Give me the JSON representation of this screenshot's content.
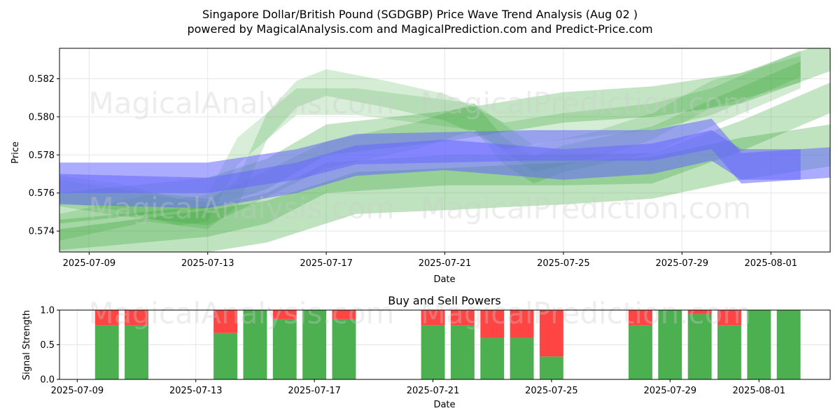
{
  "title_line1": "Singapore Dollar/British Pound (SGDGBP) Price Wave Trend Analysis (Aug 02 )",
  "title_line2": "powered by MagicalAnalysis.com and MagicalPrediction.com and Predict-Price.com",
  "watermarks": [
    "MagicalAnalysis.com",
    "MagicalPrediction.com"
  ],
  "colors": {
    "green": "#2ca02c",
    "blue": "#6666ff",
    "buy": "#4caf50",
    "sell": "#ff4444"
  },
  "chart_data": [
    {
      "type": "area",
      "title": "",
      "xlabel": "Date",
      "ylabel": "Price",
      "xlim": [
        "2025-07-08",
        "2025-08-03"
      ],
      "ylim": [
        0.5729,
        0.5836
      ],
      "x_ticks": [
        "2025-07-09",
        "2025-07-13",
        "2025-07-17",
        "2025-07-21",
        "2025-07-25",
        "2025-07-29",
        "2025-08-01"
      ],
      "y_ticks": [
        0.574,
        0.576,
        0.578,
        0.58,
        0.582
      ],
      "grid": true,
      "legend": "none",
      "bands": [
        {
          "color": "green",
          "opacity": 0.28,
          "width": 0.0016,
          "points": [
            [
              "2025-07-08",
              0.5738
            ],
            [
              "2025-07-13",
              0.5745
            ],
            [
              "2025-07-15",
              0.5752
            ],
            [
              "2025-07-17",
              0.5768
            ],
            [
              "2025-07-21",
              0.5772
            ],
            [
              "2025-07-25",
              0.5772
            ],
            [
              "2025-07-28",
              0.5773
            ],
            [
              "2025-07-31",
              0.579
            ],
            [
              "2025-08-03",
              0.581
            ]
          ]
        },
        {
          "color": "green",
          "opacity": 0.28,
          "width": 0.0016,
          "points": [
            [
              "2025-07-08",
              0.5752
            ],
            [
              "2025-07-13",
              0.576
            ],
            [
              "2025-07-15",
              0.577
            ],
            [
              "2025-07-17",
              0.5788
            ],
            [
              "2025-07-21",
              0.5795
            ],
            [
              "2025-07-25",
              0.5805
            ],
            [
              "2025-07-28",
              0.5808
            ],
            [
              "2025-07-31",
              0.5815
            ],
            [
              "2025-08-03",
              0.5832
            ]
          ]
        },
        {
          "color": "green",
          "opacity": 0.2,
          "width": 0.0014,
          "points": [
            [
              "2025-07-08",
              0.5742
            ],
            [
              "2025-07-11",
              0.5752
            ],
            [
              "2025-07-13",
              0.5748
            ],
            [
              "2025-07-14",
              0.576
            ],
            [
              "2025-07-15",
              0.5795
            ],
            [
              "2025-07-16",
              0.5812
            ],
            [
              "2025-07-17",
              0.5818
            ],
            [
              "2025-07-19",
              0.5812
            ],
            [
              "2025-07-21",
              0.5805
            ],
            [
              "2025-07-22",
              0.5798
            ],
            [
              "2025-07-23",
              0.579
            ],
            [
              "2025-07-25",
              0.5795
            ],
            [
              "2025-07-28",
              0.58
            ],
            [
              "2025-07-30",
              0.5808
            ],
            [
              "2025-08-02",
              0.5828
            ]
          ]
        },
        {
          "color": "green",
          "opacity": 0.18,
          "width": 0.0014,
          "points": [
            [
              "2025-07-08",
              0.5762
            ],
            [
              "2025-07-10",
              0.5758
            ],
            [
              "2025-07-12",
              0.575
            ],
            [
              "2025-07-13",
              0.5752
            ],
            [
              "2025-07-14",
              0.5782
            ],
            [
              "2025-07-16",
              0.5808
            ],
            [
              "2025-07-18",
              0.5808
            ],
            [
              "2025-07-21",
              0.5802
            ],
            [
              "2025-07-22",
              0.58
            ],
            [
              "2025-07-24",
              0.5778
            ],
            [
              "2025-07-26",
              0.5785
            ],
            [
              "2025-07-28",
              0.5795
            ],
            [
              "2025-07-30",
              0.5812
            ],
            [
              "2025-08-02",
              0.5825
            ]
          ]
        },
        {
          "color": "green",
          "opacity": 0.22,
          "width": 0.0014,
          "points": [
            [
              "2025-07-08",
              0.576
            ],
            [
              "2025-07-10",
              0.5755
            ],
            [
              "2025-07-13",
              0.575
            ],
            [
              "2025-07-15",
              0.5765
            ],
            [
              "2025-07-17",
              0.578
            ],
            [
              "2025-07-20",
              0.579
            ],
            [
              "2025-07-22",
              0.58
            ],
            [
              "2025-07-23",
              0.5782
            ],
            [
              "2025-07-24",
              0.5772
            ],
            [
              "2025-07-25",
              0.5778
            ],
            [
              "2025-07-28",
              0.5788
            ],
            [
              "2025-07-30",
              0.5802
            ],
            [
              "2025-08-02",
              0.5822
            ]
          ]
        },
        {
          "color": "green",
          "opacity": 0.3,
          "width": 0.0022,
          "points": [
            [
              "2025-07-08",
              0.573
            ],
            [
              "2025-07-13",
              0.574
            ],
            [
              "2025-07-15",
              0.5745
            ],
            [
              "2025-07-18",
              0.576
            ],
            [
              "2025-07-21",
              0.5762
            ],
            [
              "2025-07-25",
              0.5765
            ],
            [
              "2025-07-28",
              0.5768
            ],
            [
              "2025-07-31",
              0.5778
            ],
            [
              "2025-08-03",
              0.5785
            ]
          ]
        },
        {
          "color": "blue",
          "opacity": 0.55,
          "width": 0.0016,
          "points": [
            [
              "2025-07-08",
              0.5768
            ],
            [
              "2025-07-13",
              0.5768
            ],
            [
              "2025-07-16",
              0.5775
            ],
            [
              "2025-07-18",
              0.5783
            ],
            [
              "2025-07-21",
              0.5784
            ],
            [
              "2025-07-24",
              0.5785
            ],
            [
              "2025-07-28",
              0.5785
            ],
            [
              "2025-07-29",
              0.5788
            ],
            [
              "2025-07-30",
              0.5791
            ],
            [
              "2025-07-31",
              0.5773
            ],
            [
              "2025-08-03",
              0.5776
            ]
          ]
        },
        {
          "color": "blue",
          "opacity": 0.55,
          "width": 0.0016,
          "points": [
            [
              "2025-07-08",
              0.5762
            ],
            [
              "2025-07-13",
              0.576
            ],
            [
              "2025-07-16",
              0.5768
            ],
            [
              "2025-07-18",
              0.5777
            ],
            [
              "2025-07-21",
              0.578
            ],
            [
              "2025-07-25",
              0.5775
            ],
            [
              "2025-07-28",
              0.5778
            ],
            [
              "2025-07-30",
              0.5785
            ],
            [
              "2025-07-31",
              0.5775
            ],
            [
              "2025-08-02",
              0.5775
            ]
          ]
        }
      ]
    },
    {
      "type": "bar",
      "title": "Buy and Sell Powers",
      "xlabel": "Date",
      "ylabel": "Signal Strength",
      "xlim": [
        "2025-07-08",
        "2025-08-03"
      ],
      "ylim": [
        0,
        1
      ],
      "x_ticks": [
        "2025-07-09",
        "2025-07-13",
        "2025-07-17",
        "2025-07-21",
        "2025-07-25",
        "2025-07-29",
        "2025-08-01"
      ],
      "y_ticks": [
        0.0,
        0.5,
        1.0
      ],
      "grid": true,
      "series": [
        {
          "name": "",
          "color": "buy",
          "x": [
            "2025-07-10",
            "2025-07-11",
            "2025-07-14",
            "2025-07-15",
            "2025-07-16",
            "2025-07-17",
            "2025-07-18",
            "2025-07-21",
            "2025-07-22",
            "2025-07-23",
            "2025-07-24",
            "2025-07-25",
            "2025-07-28",
            "2025-07-29",
            "2025-07-30",
            "2025-07-31",
            "2025-08-01",
            "2025-08-02"
          ],
          "values": [
            0.78,
            0.78,
            0.67,
            1.0,
            0.87,
            1.0,
            0.87,
            0.78,
            0.78,
            0.6,
            0.6,
            0.33,
            0.78,
            1.0,
            0.94,
            0.78,
            1.0,
            1.0
          ]
        },
        {
          "name": "",
          "color": "sell",
          "x": [
            "2025-07-10",
            "2025-07-11",
            "2025-07-14",
            "2025-07-15",
            "2025-07-16",
            "2025-07-17",
            "2025-07-18",
            "2025-07-21",
            "2025-07-22",
            "2025-07-23",
            "2025-07-24",
            "2025-07-25",
            "2025-07-28",
            "2025-07-29",
            "2025-07-30",
            "2025-07-31",
            "2025-08-01",
            "2025-08-02"
          ],
          "values": [
            0.22,
            0.22,
            0.33,
            0.0,
            0.13,
            0.0,
            0.13,
            0.22,
            0.22,
            0.4,
            0.4,
            0.67,
            0.22,
            0.0,
            0.06,
            0.22,
            0.0,
            0.0
          ]
        }
      ]
    }
  ]
}
